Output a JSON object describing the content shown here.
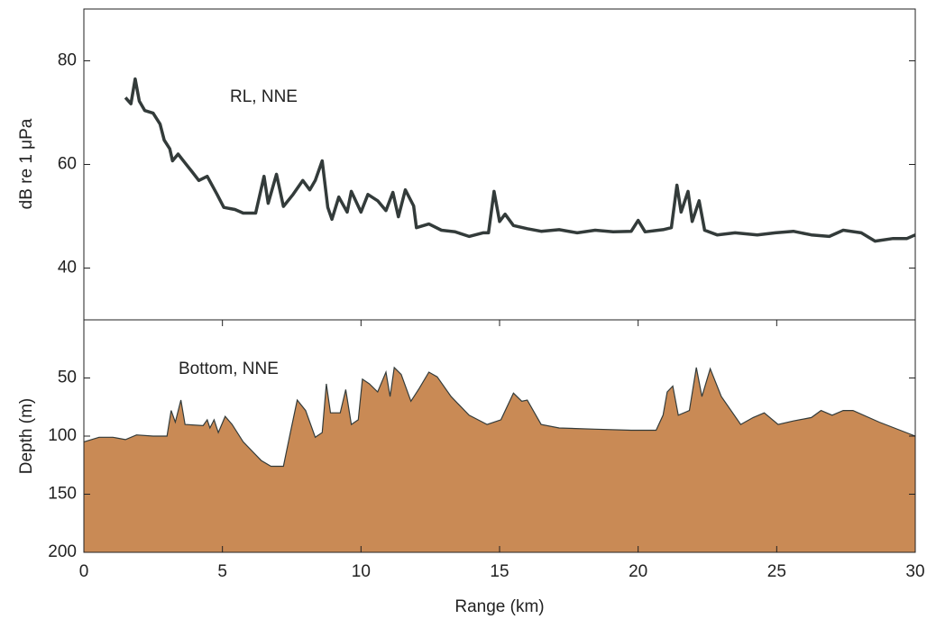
{
  "chart_data": [
    {
      "type": "line",
      "annotation": "RL, NNE",
      "y_label": "dB re 1 μPa",
      "color": "#333b3a",
      "xlim": [
        0,
        30
      ],
      "ylim": [
        30,
        90
      ],
      "yticks": [
        40,
        60,
        80
      ],
      "x": [
        1.5,
        1.7,
        1.85,
        2.0,
        2.2,
        2.5,
        2.75,
        2.9,
        3.1,
        3.2,
        3.4,
        3.65,
        3.9,
        4.15,
        4.45,
        4.8,
        5.05,
        5.45,
        5.75,
        6.2,
        6.5,
        6.65,
        6.95,
        7.2,
        7.55,
        7.9,
        8.15,
        8.35,
        8.6,
        8.8,
        8.95,
        9.2,
        9.5,
        9.65,
        10.0,
        10.25,
        10.6,
        10.9,
        11.15,
        11.35,
        11.6,
        11.9,
        12.0,
        12.45,
        12.9,
        13.4,
        13.9,
        14.4,
        14.6,
        14.8,
        15.0,
        15.2,
        15.5,
        16.0,
        16.5,
        17.15,
        17.8,
        18.45,
        19.1,
        19.75,
        20.0,
        20.25,
        20.9,
        21.2,
        21.4,
        21.55,
        21.8,
        21.95,
        22.2,
        22.4,
        22.85,
        23.5,
        24.3,
        24.95,
        25.6,
        26.25,
        26.9,
        27.4,
        28.05,
        28.55,
        29.2,
        29.7,
        30
      ],
      "values": [
        72.9,
        71.7,
        76.5,
        72.2,
        70.4,
        69.9,
        67.8,
        64.7,
        63,
        60.7,
        62,
        60.3,
        58.6,
        56.9,
        57.7,
        54.3,
        51.7,
        51.3,
        50.6,
        50.6,
        57.7,
        52.5,
        58.1,
        51.9,
        54.2,
        56.9,
        55.1,
        56.9,
        60.7,
        51.7,
        49.4,
        53.7,
        50.8,
        54.8,
        50.8,
        54.2,
        53,
        51.1,
        54.6,
        49.9,
        55.1,
        52,
        47.8,
        48.5,
        47.3,
        47,
        46.1,
        46.8,
        46.8,
        54.8,
        49,
        50.4,
        48.2,
        47.6,
        47.1,
        47.4,
        46.8,
        47.3,
        47,
        47.1,
        49.2,
        47,
        47.4,
        47.8,
        56,
        50.8,
        54.8,
        49,
        53,
        47.3,
        46.4,
        46.8,
        46.4,
        46.8,
        47.1,
        46.4,
        46.1,
        47.3,
        46.8,
        45.2,
        45.7,
        45.7,
        46.4
      ]
    },
    {
      "type": "area",
      "annotation": "Bottom, NNE",
      "y_label": "Depth (m)",
      "x_label": "Range (km)",
      "color": "#c98a55",
      "line_color": "#333b3a",
      "xlim": [
        0,
        30
      ],
      "ylim": [
        200,
        0
      ],
      "yticks": [
        50,
        100,
        150,
        200
      ],
      "xticks": [
        0,
        5,
        10,
        15,
        20,
        25,
        30
      ],
      "x": [
        0,
        0.55,
        1.05,
        1.5,
        1.9,
        2.5,
        3.0,
        3.15,
        3.3,
        3.5,
        3.65,
        4.3,
        4.45,
        4.55,
        4.7,
        4.85,
        5.1,
        5.35,
        5.75,
        6.4,
        6.75,
        7.2,
        7.45,
        7.7,
        8.0,
        8.35,
        8.6,
        8.75,
        8.9,
        9.25,
        9.45,
        9.65,
        9.9,
        10.05,
        10.3,
        10.6,
        10.9,
        11.05,
        11.2,
        11.45,
        11.8,
        12.1,
        12.45,
        12.75,
        13.25,
        13.9,
        14.55,
        15.05,
        15.5,
        15.8,
        16.0,
        16.5,
        17.15,
        18.45,
        19.75,
        20.65,
        20.9,
        21.05,
        21.25,
        21.45,
        21.85,
        22.1,
        22.3,
        22.6,
        23.0,
        23.7,
        24.15,
        24.55,
        25.05,
        25.6,
        26.25,
        26.6,
        27.0,
        27.4,
        27.75,
        28.7,
        30
      ],
      "values": [
        105,
        101,
        101,
        103,
        99,
        100,
        100,
        78,
        88,
        69,
        90,
        91,
        86,
        93,
        86,
        97,
        83,
        90,
        105,
        121,
        126,
        126,
        97,
        69,
        78,
        101,
        97,
        55,
        80,
        80,
        60,
        90,
        86,
        51,
        55,
        62,
        45,
        66,
        41,
        47,
        70,
        59,
        45,
        49,
        66,
        82,
        90,
        86,
        63,
        70,
        69,
        90,
        93,
        94,
        95,
        95,
        82,
        62,
        57,
        82,
        78,
        41,
        66,
        42,
        66,
        90,
        84,
        80,
        90,
        87,
        84,
        78,
        82,
        78,
        78,
        88,
        100
      ]
    }
  ]
}
